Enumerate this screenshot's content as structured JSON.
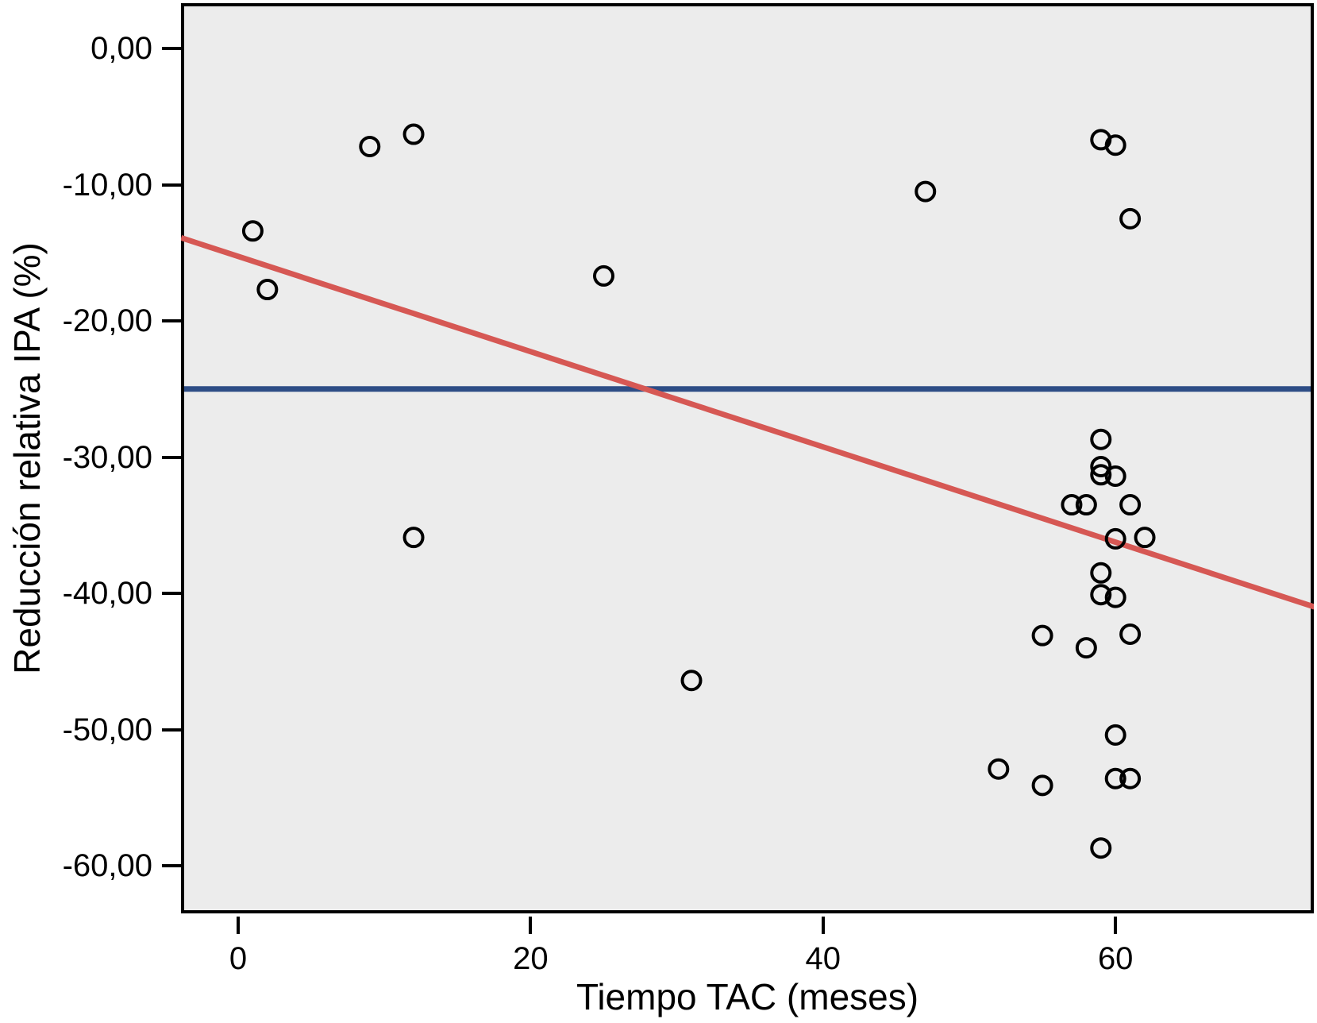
{
  "chart_data": {
    "type": "scatter",
    "title": "",
    "xlabel": "Tiempo TAC (meses)",
    "ylabel": "Reducción relativa IPA (%)",
    "xlim": [
      -3.9,
      73.6
    ],
    "ylim": [
      -63.5,
      3.1
    ],
    "grid": false,
    "legend": "none",
    "plot_bg": "#ECECEC",
    "marker": {
      "shape": "open-circle",
      "stroke_color": "#000000"
    },
    "x_ticks": [
      {
        "value": 0,
        "label": "0"
      },
      {
        "value": 20,
        "label": "20"
      },
      {
        "value": 40,
        "label": "40"
      },
      {
        "value": 60,
        "label": "60"
      }
    ],
    "y_ticks": [
      {
        "value": 0,
        "label": "0,00"
      },
      {
        "value": -10,
        "label": "-10,00"
      },
      {
        "value": -20,
        "label": "-20,00"
      },
      {
        "value": -30,
        "label": "-30,00"
      },
      {
        "value": -40,
        "label": "-40,00"
      },
      {
        "value": -50,
        "label": "-50,00"
      },
      {
        "value": -60,
        "label": "-60,00"
      }
    ],
    "points": [
      [
        1,
        -13.4
      ],
      [
        2,
        -17.7
      ],
      [
        9,
        -7.2
      ],
      [
        12,
        -6.3
      ],
      [
        12,
        -35.9
      ],
      [
        25,
        -16.7
      ],
      [
        31,
        -46.4
      ],
      [
        47,
        -10.5
      ],
      [
        59,
        -6.7
      ],
      [
        60,
        -7.1
      ],
      [
        61,
        -12.5
      ],
      [
        59,
        -28.7
      ],
      [
        59,
        -30.7
      ],
      [
        59,
        -31.3
      ],
      [
        60,
        -31.4
      ],
      [
        57,
        -33.5
      ],
      [
        58,
        -33.5
      ],
      [
        61,
        -33.5
      ],
      [
        60,
        -36.0
      ],
      [
        62,
        -35.9
      ],
      [
        59,
        -38.5
      ],
      [
        59,
        -40.1
      ],
      [
        60,
        -40.3
      ],
      [
        55,
        -43.1
      ],
      [
        58,
        -44.0
      ],
      [
        61,
        -43.0
      ],
      [
        60,
        -50.4
      ],
      [
        52,
        -52.9
      ],
      [
        55,
        -54.1
      ],
      [
        60,
        -53.6
      ],
      [
        61,
        -53.6
      ],
      [
        59,
        -58.7
      ]
    ],
    "fit_line": {
      "color": "#D65854",
      "x1": -3.9,
      "y1": -13.9,
      "x2": 73.6,
      "y2": -41.0
    },
    "reference_line": {
      "color": "#2D4D86",
      "y": -25
    }
  }
}
